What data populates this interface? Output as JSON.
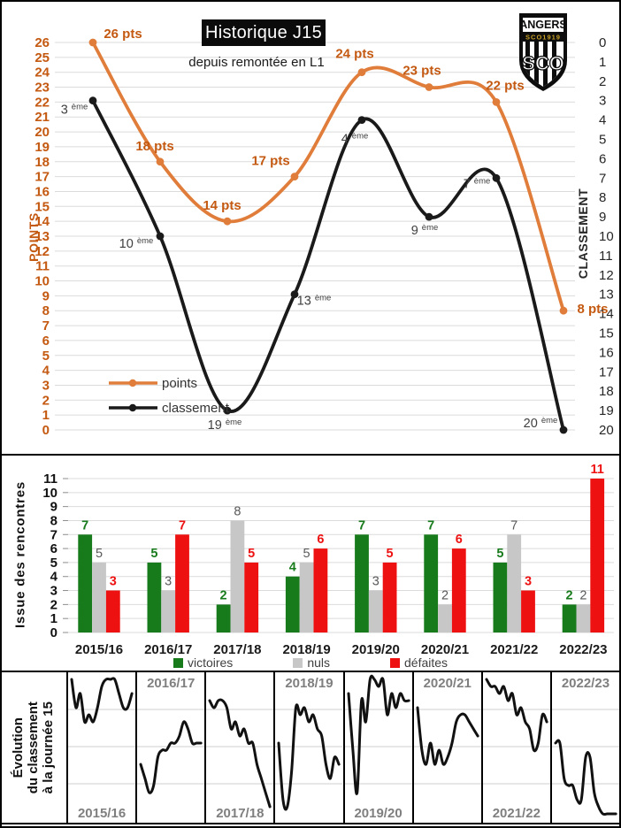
{
  "header": {
    "title": "Historique J15",
    "subtitle": "depuis remontée en L1",
    "logo": {
      "club": "ANGERS",
      "band": "SCO1919",
      "initials": "SCO"
    }
  },
  "colors": {
    "orange_line": "#E07D3A",
    "orange_text": "#C45911",
    "black_line": "#1A1A1A",
    "rank_label": "#3F3F3F",
    "grid": "#DBDBDB",
    "green": "#177A1B",
    "red": "#EE1111",
    "gray_bar": "#C7C7C7",
    "nuls_label": "#595959",
    "season_black": "#1A1A1A",
    "season_gray": "#7F7F7F",
    "gold": "#C9A227"
  },
  "chart_data": [
    {
      "id": "historique-j15",
      "type": "line",
      "title": "Historique J15",
      "subtitle": "depuis remontée en L1",
      "seasons": [
        "2015/16",
        "2016/17",
        "2017/18",
        "2018/19",
        "2019/20",
        "2020/21",
        "2021/22",
        "2022/23"
      ],
      "x_axis_labels_visible": false,
      "grid": true,
      "left_axis": {
        "label": "POINTS",
        "min": 0,
        "max": 26,
        "step": 1
      },
      "right_axis": {
        "label": "CLASSEMENT",
        "min": 0,
        "max": 20,
        "step": 1,
        "inverted": true
      },
      "series": [
        {
          "name": "points",
          "axis": "left",
          "values": [
            26,
            18,
            14,
            17,
            24,
            23,
            22,
            8
          ],
          "label_suffix": " pts",
          "color_key": "orange_line",
          "label_color_key": "orange_text"
        },
        {
          "name": "classement",
          "axis": "right",
          "values": [
            3,
            10,
            19,
            13,
            4,
            9,
            7,
            20
          ],
          "label_suffix": " ème",
          "color_key": "black_line",
          "label_color_key": "rank_label"
        }
      ],
      "legend_position": "middle-left"
    },
    {
      "id": "issue-des-rencontres",
      "type": "bar",
      "ylabel": "Issue des rencontres",
      "ylim": [
        0,
        11
      ],
      "grid": true,
      "legend_position": "bottom",
      "categories": [
        "2015/16",
        "2016/17",
        "2017/18",
        "2018/19",
        "2019/20",
        "2020/21",
        "2021/22",
        "2022/23"
      ],
      "series": [
        {
          "name": "victoires",
          "values": [
            7,
            5,
            2,
            4,
            7,
            7,
            5,
            2
          ],
          "color_key": "green",
          "label_bold": true
        },
        {
          "name": "nuls",
          "values": [
            5,
            3,
            8,
            5,
            3,
            2,
            7,
            2
          ],
          "color_key": "gray_bar",
          "label_color_key": "nuls_label",
          "label_bold": false
        },
        {
          "name": "défaites",
          "values": [
            3,
            7,
            5,
            6,
            5,
            6,
            3,
            11
          ],
          "color_key": "red",
          "label_bold": true
        }
      ]
    },
    {
      "id": "evolution-classement-j15",
      "type": "line-multiples",
      "ylabel_lines": [
        "Évolution",
        "du classement",
        "à la journée 15"
      ],
      "ylim": [
        1,
        20
      ],
      "inverted": true,
      "x_points": 15,
      "panels": [
        {
          "season": "2015/16",
          "label_pos": "bottom",
          "ranks": [
            1,
            5,
            3,
            7,
            6,
            7,
            5,
            2,
            1,
            1,
            1,
            3,
            5,
            5,
            3
          ]
        },
        {
          "season": "2016/17",
          "label_pos": "top",
          "ranks": [
            13,
            15,
            17,
            16,
            12,
            11,
            11,
            10,
            10,
            9,
            7,
            8,
            10,
            10,
            10
          ]
        },
        {
          "season": "2017/18",
          "label_pos": "bottom",
          "ranks": [
            4,
            5,
            4,
            4,
            5,
            8,
            7,
            9,
            8,
            10,
            10,
            13,
            15,
            17,
            19
          ]
        },
        {
          "season": "2018/19",
          "label_pos": "top",
          "ranks": [
            10,
            18,
            19,
            14,
            5,
            6,
            5,
            7,
            6,
            8,
            9,
            13,
            15,
            12,
            13
          ]
        },
        {
          "season": "2019/20",
          "label_pos": "bottom",
          "ranks": [
            3,
            11,
            17,
            4,
            7,
            1,
            1,
            2,
            1,
            6,
            3,
            5,
            3,
            4,
            4
          ]
        },
        {
          "season": "2020/21",
          "label_pos": "top",
          "ranks": [
            5,
            11,
            13,
            10,
            13,
            11,
            13,
            12,
            10,
            7,
            6,
            6,
            7,
            8,
            9
          ]
        },
        {
          "season": "2021/22",
          "label_pos": "bottom",
          "ranks": [
            1,
            2,
            2,
            3,
            2,
            4,
            3,
            6,
            5,
            7,
            8,
            11,
            10,
            6,
            7
          ]
        },
        {
          "season": "2022/23",
          "label_pos": "top",
          "ranks": [
            10,
            10,
            15,
            16,
            16,
            18,
            18,
            12,
            12,
            17,
            19,
            20,
            20,
            20,
            20
          ]
        }
      ]
    }
  ]
}
